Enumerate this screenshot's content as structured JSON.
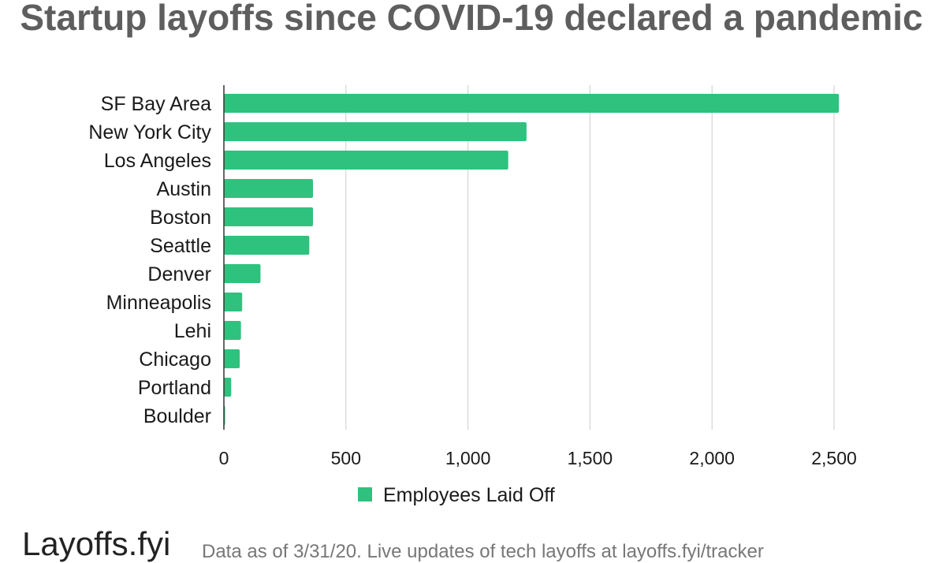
{
  "chart_data": {
    "type": "bar",
    "orientation": "horizontal",
    "title": "Startup layoffs since COVID-19 declared a pandemic",
    "categories": [
      "SF Bay Area",
      "New York City",
      "Los Angeles",
      "Austin",
      "Boston",
      "Seattle",
      "Denver",
      "Minneapolis",
      "Lehi",
      "Chicago",
      "Portland",
      "Boulder"
    ],
    "series": [
      {
        "name": "Employees Laid Off",
        "color": "#2ec27e",
        "values": [
          2520,
          1240,
          1165,
          365,
          365,
          350,
          150,
          75,
          70,
          65,
          30,
          5
        ]
      }
    ],
    "xlim": [
      0,
      2500
    ],
    "xticks": [
      0,
      500,
      1000,
      1500,
      2000,
      2500
    ],
    "xtick_labels": [
      "0",
      "500",
      "1,000",
      "1,500",
      "2,000",
      "2,500"
    ],
    "xlabel": "",
    "ylabel": "",
    "grid": "vertical",
    "legend_position": "bottom"
  },
  "footer": {
    "brand": "Layoffs.fyi",
    "note": "Data as of 3/31/20. Live updates of tech layoffs at layoffs.fyi/tracker"
  }
}
